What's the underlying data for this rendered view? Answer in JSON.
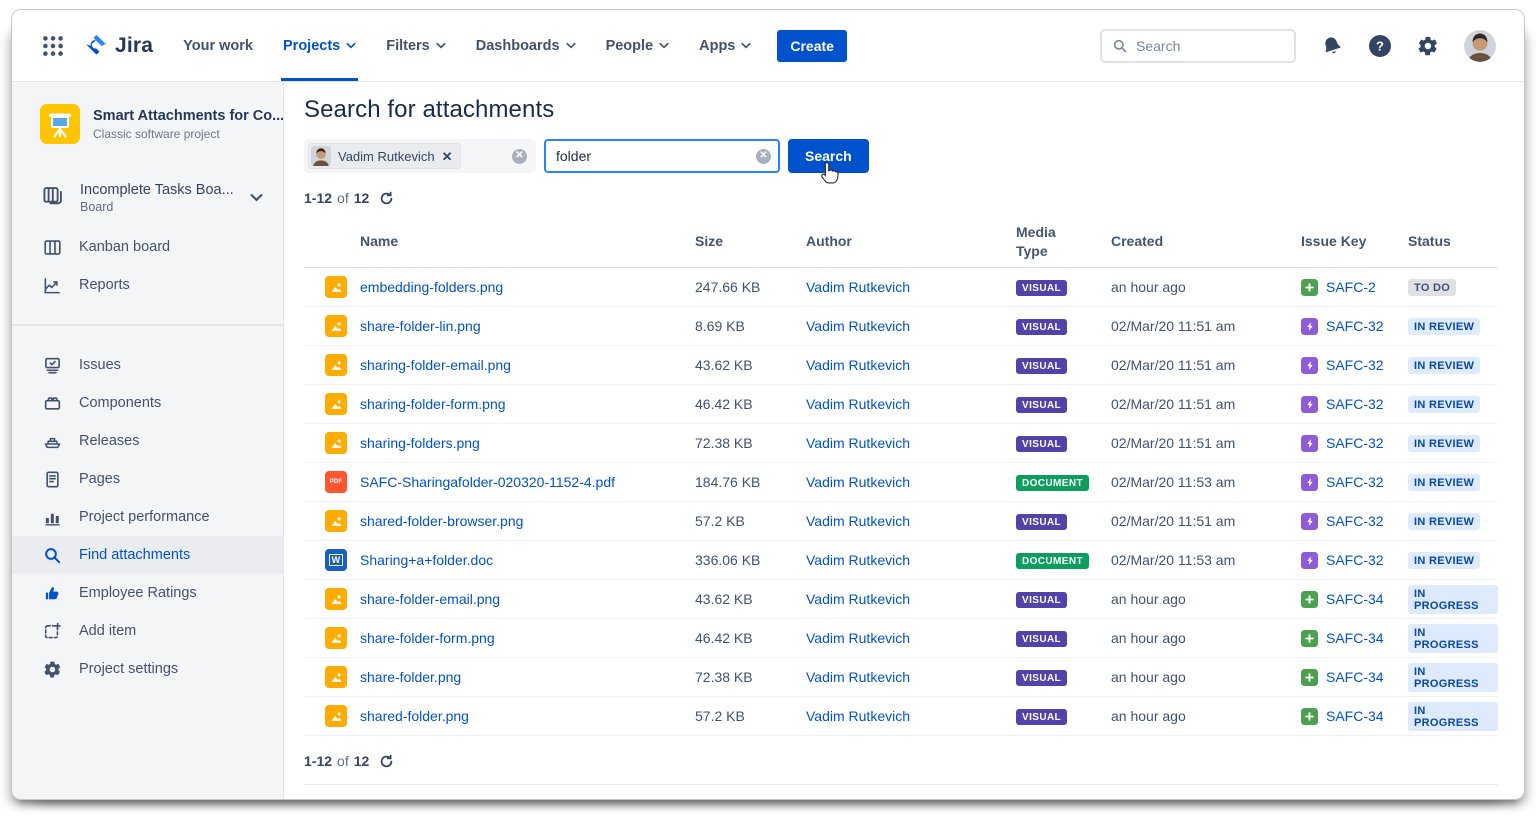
{
  "topnav": {
    "app_name": "Jira",
    "items": [
      {
        "label": "Your work",
        "chevron": false,
        "active": false
      },
      {
        "label": "Projects",
        "chevron": true,
        "active": true
      },
      {
        "label": "Filters",
        "chevron": true,
        "active": false
      },
      {
        "label": "Dashboards",
        "chevron": true,
        "active": false
      },
      {
        "label": "People",
        "chevron": true,
        "active": false
      },
      {
        "label": "Apps",
        "chevron": true,
        "active": false
      }
    ],
    "create_label": "Create",
    "search_placeholder": "Search"
  },
  "sidebar": {
    "project_name": "Smart Attachments for Co...",
    "project_type": "Classic software project",
    "board_name": "Incomplete Tasks Boa...",
    "board_type": "Board",
    "menu": [
      {
        "icon": "kanban",
        "label": "Kanban board"
      },
      {
        "icon": "reports",
        "label": "Reports"
      },
      {
        "divider": true
      },
      {
        "icon": "issues",
        "label": "Issues"
      },
      {
        "icon": "components",
        "label": "Components"
      },
      {
        "icon": "releases",
        "label": "Releases"
      },
      {
        "icon": "pages",
        "label": "Pages"
      },
      {
        "icon": "performance",
        "label": "Project performance"
      },
      {
        "icon": "find",
        "label": "Find attachments",
        "selected": true
      },
      {
        "icon": "ratings",
        "label": "Employee Ratings",
        "colored": true
      },
      {
        "icon": "additem",
        "label": "Add item"
      },
      {
        "icon": "settings",
        "label": "Project settings"
      }
    ]
  },
  "main": {
    "title": "Search for attachments",
    "filters": {
      "user_chip": "Vadim Rutkevich",
      "query_value": "folder",
      "search_label": "Search"
    },
    "pagination": {
      "range": "1-12",
      "of": "of",
      "total": "12"
    },
    "table": {
      "headers": [
        "Name",
        "Size",
        "Author",
        "Media Type",
        "Created",
        "Issue Key",
        "Status"
      ],
      "rows": [
        {
          "file": "image",
          "name": "embedding-folders.png",
          "size": "247.66 KB",
          "author": "Vadim Rutkevich",
          "media": "VISUAL",
          "created": "an hour ago",
          "issue_type": "plus",
          "issue_key": "SAFC-2",
          "status": "TO DO"
        },
        {
          "file": "image",
          "name": "share-folder-lin.png",
          "size": "8.69 KB",
          "author": "Vadim Rutkevich",
          "media": "VISUAL",
          "created": "02/Mar/20 11:51 am",
          "issue_type": "bolt",
          "issue_key": "SAFC-32",
          "status": "IN REVIEW"
        },
        {
          "file": "image",
          "name": "sharing-folder-email.png",
          "size": "43.62 KB",
          "author": "Vadim Rutkevich",
          "media": "VISUAL",
          "created": "02/Mar/20 11:51 am",
          "issue_type": "bolt",
          "issue_key": "SAFC-32",
          "status": "IN REVIEW"
        },
        {
          "file": "image",
          "name": "sharing-folder-form.png",
          "size": "46.42 KB",
          "author": "Vadim Rutkevich",
          "media": "VISUAL",
          "created": "02/Mar/20 11:51 am",
          "issue_type": "bolt",
          "issue_key": "SAFC-32",
          "status": "IN REVIEW"
        },
        {
          "file": "image",
          "name": "sharing-folders.png",
          "size": "72.38 KB",
          "author": "Vadim Rutkevich",
          "media": "VISUAL",
          "created": "02/Mar/20 11:51 am",
          "issue_type": "bolt",
          "issue_key": "SAFC-32",
          "status": "IN REVIEW"
        },
        {
          "file": "pdf",
          "name": "SAFC-Sharingafolder-020320-1152-4.pdf",
          "size": "184.76 KB",
          "author": "Vadim Rutkevich",
          "media": "DOCUMENT",
          "created": "02/Mar/20 11:53 am",
          "issue_type": "bolt",
          "issue_key": "SAFC-32",
          "status": "IN REVIEW"
        },
        {
          "file": "image",
          "name": "shared-folder-browser.png",
          "size": "57.2 KB",
          "author": "Vadim Rutkevich",
          "media": "VISUAL",
          "created": "02/Mar/20 11:51 am",
          "issue_type": "bolt",
          "issue_key": "SAFC-32",
          "status": "IN REVIEW"
        },
        {
          "file": "word",
          "name": "Sharing+a+folder.doc",
          "size": "336.06 KB",
          "author": "Vadim Rutkevich",
          "media": "DOCUMENT",
          "created": "02/Mar/20 11:53 am",
          "issue_type": "bolt",
          "issue_key": "SAFC-32",
          "status": "IN REVIEW"
        },
        {
          "file": "image",
          "name": "share-folder-email.png",
          "size": "43.62 KB",
          "author": "Vadim Rutkevich",
          "media": "VISUAL",
          "created": "an hour ago",
          "issue_type": "plus",
          "issue_key": "SAFC-34",
          "status": "IN PROGRESS"
        },
        {
          "file": "image",
          "name": "share-folder-form.png",
          "size": "46.42 KB",
          "author": "Vadim Rutkevich",
          "media": "VISUAL",
          "created": "an hour ago",
          "issue_type": "plus",
          "issue_key": "SAFC-34",
          "status": "IN PROGRESS"
        },
        {
          "file": "image",
          "name": "share-folder.png",
          "size": "72.38 KB",
          "author": "Vadim Rutkevich",
          "media": "VISUAL",
          "created": "an hour ago",
          "issue_type": "plus",
          "issue_key": "SAFC-34",
          "status": "IN PROGRESS"
        },
        {
          "file": "image",
          "name": "shared-folder.png",
          "size": "57.2 KB",
          "author": "Vadim Rutkevich",
          "media": "VISUAL",
          "created": "an hour ago",
          "issue_type": "plus",
          "issue_key": "SAFC-34",
          "status": "IN PROGRESS"
        }
      ]
    }
  },
  "colors": {
    "accent": "#0052CC",
    "visual_badge": "#5243AA",
    "document_badge": "#0B9E5E",
    "status_todo_bg": "#DFE1E6",
    "status_todo_text": "#42526E",
    "status_blue_bg": "#DEEBFF",
    "status_blue_text": "#0747A6",
    "link": "#0052CC",
    "image_file_icon": "#FFAB00",
    "pdf_file_icon": "#FF5630",
    "word_file_icon": "#1760BE",
    "issue_plus_icon": "#4BA14F",
    "issue_bolt_icon": "#8D5CD6",
    "sidebar_bg": "#F4F5F7",
    "project_avatar_bg": "#FFC400"
  }
}
